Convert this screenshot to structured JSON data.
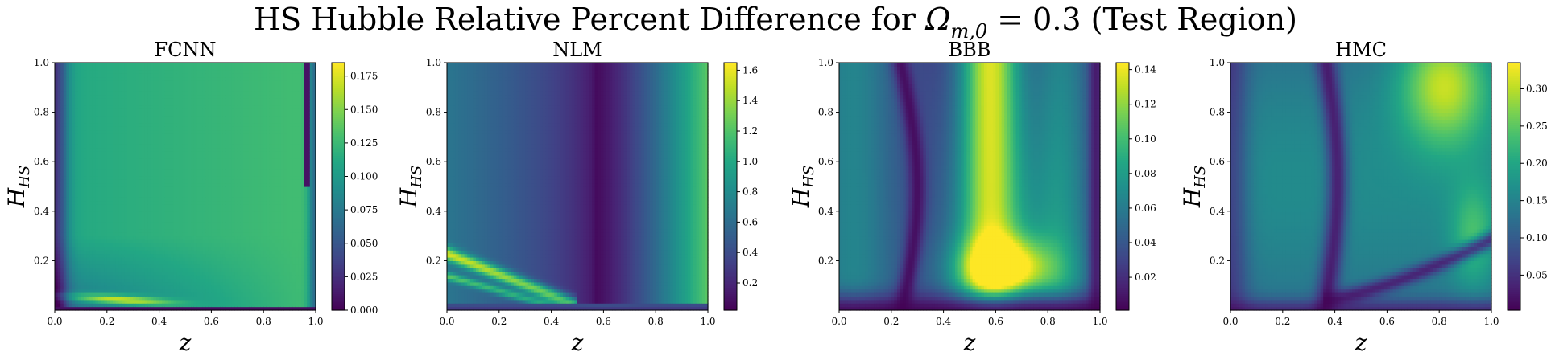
{
  "suptitle": {
    "prefix": "HS Hubble Relative Percent Difference for ",
    "omega": "Ω",
    "omega_sub": "m,0",
    "suffix": " = 0.3 (Test Region)"
  },
  "chart_data": [
    {
      "type": "heatmap",
      "title": "FCNN",
      "xlabel": "z",
      "ylabel_main": "H",
      "ylabel_sub": "HS",
      "xlim": [
        0.0,
        1.0
      ],
      "ylim": [
        0.0,
        1.0
      ],
      "xticks": [
        "0.0",
        "0.2",
        "0.4",
        "0.6",
        "0.8",
        "1.0"
      ],
      "yticks": [
        "0.2",
        "0.4",
        "0.6",
        "0.8",
        "1.0"
      ],
      "colormap": "viridis",
      "colorbar_range": [
        0.0,
        0.185
      ],
      "colorbar_ticks": [
        "0.000",
        "0.025",
        "0.050",
        "0.075",
        "0.100",
        "0.125",
        "0.150",
        "0.175"
      ],
      "colorbar_tick_values": [
        0.0,
        0.025,
        0.05,
        0.075,
        0.1,
        0.125,
        0.15,
        0.175
      ],
      "pattern": "fcnn"
    },
    {
      "type": "heatmap",
      "title": "NLM",
      "xlabel": "z",
      "ylabel_main": "H",
      "ylabel_sub": "HS",
      "xlim": [
        0.0,
        1.0
      ],
      "ylim": [
        0.0,
        1.0
      ],
      "xticks": [
        "0.0",
        "0.2",
        "0.4",
        "0.6",
        "0.8",
        "1.0"
      ],
      "yticks": [
        "0.2",
        "0.4",
        "0.6",
        "0.8",
        "1.0"
      ],
      "colormap": "viridis",
      "colorbar_range": [
        0.02,
        1.65
      ],
      "colorbar_ticks": [
        "0.2",
        "0.4",
        "0.6",
        "0.8",
        "1.0",
        "1.2",
        "1.4",
        "1.6"
      ],
      "colorbar_tick_values": [
        0.2,
        0.4,
        0.6,
        0.8,
        1.0,
        1.2,
        1.4,
        1.6
      ],
      "pattern": "nlm"
    },
    {
      "type": "heatmap",
      "title": "BBB",
      "xlabel": "z",
      "ylabel_main": "H",
      "ylabel_sub": "HS",
      "xlim": [
        0.0,
        1.0
      ],
      "ylim": [
        0.0,
        1.0
      ],
      "xticks": [
        "0.0",
        "0.2",
        "0.4",
        "0.6",
        "0.8",
        "1.0"
      ],
      "yticks": [
        "0.2",
        "0.4",
        "0.6",
        "0.8",
        "1.0"
      ],
      "colormap": "viridis",
      "colorbar_range": [
        0.001,
        0.144
      ],
      "colorbar_ticks": [
        "0.02",
        "0.04",
        "0.06",
        "0.08",
        "0.10",
        "0.12",
        "0.14"
      ],
      "colorbar_tick_values": [
        0.02,
        0.04,
        0.06,
        0.08,
        0.1,
        0.12,
        0.14
      ],
      "pattern": "bbb"
    },
    {
      "type": "heatmap",
      "title": "HMC",
      "xlabel": "z",
      "ylabel_main": "H",
      "ylabel_sub": "HS",
      "xlim": [
        0.0,
        1.0
      ],
      "ylim": [
        0.0,
        1.0
      ],
      "xticks": [
        "0.0",
        "0.2",
        "0.4",
        "0.6",
        "0.8",
        "1.0"
      ],
      "yticks": [
        "0.2",
        "0.4",
        "0.6",
        "0.8",
        "1.0"
      ],
      "colormap": "viridis",
      "colorbar_range": [
        0.003,
        0.335
      ],
      "colorbar_ticks": [
        "0.05",
        "0.10",
        "0.15",
        "0.20",
        "0.25",
        "0.30"
      ],
      "colorbar_tick_values": [
        0.05,
        0.1,
        0.15,
        0.2,
        0.25,
        0.3
      ],
      "pattern": "hmc"
    }
  ]
}
